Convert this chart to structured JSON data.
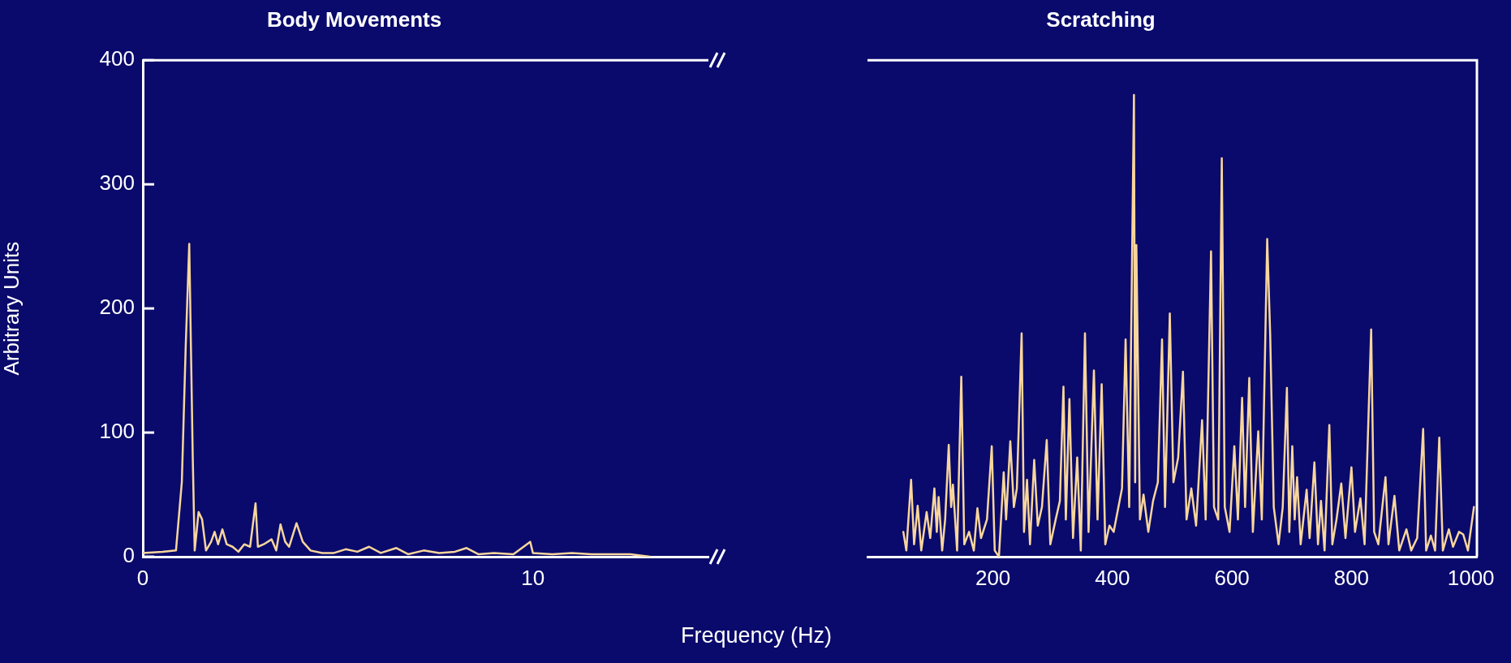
{
  "chart_data": [
    {
      "type": "line",
      "title": "Body Movements",
      "ylabel": "Arbitrary Units",
      "color": "#f8d69c",
      "x": [
        0,
        0.5,
        0.85,
        1.0,
        1.1,
        1.19,
        1.28,
        1.33,
        1.43,
        1.52,
        1.62,
        1.75,
        1.84,
        1.93,
        2.04,
        2.15,
        2.3,
        2.45,
        2.6,
        2.75,
        2.89,
        2.95,
        3.1,
        3.3,
        3.42,
        3.53,
        3.65,
        3.75,
        3.94,
        4.1,
        4.3,
        4.6,
        4.9,
        5.2,
        5.5,
        5.8,
        6.1,
        6.5,
        6.8,
        7.2,
        7.6,
        8.0,
        8.3,
        8.6,
        9.0,
        9.5,
        9.93,
        10.0,
        10.5,
        11.0,
        11.5,
        12.0,
        12.5,
        13.0
      ],
      "values": [
        3,
        4,
        5,
        60,
        170,
        252,
        80,
        5,
        36,
        30,
        5,
        12,
        20,
        10,
        22,
        10,
        8,
        4,
        10,
        8,
        43,
        8,
        10,
        14,
        5,
        26,
        12,
        8,
        27,
        12,
        5,
        3,
        3,
        6,
        4,
        8,
        3,
        7,
        2,
        5,
        3,
        4,
        7,
        2,
        3,
        2,
        12,
        3,
        2,
        3,
        2,
        2,
        2,
        0
      ],
      "xlim": [
        0,
        14.5
      ],
      "xticks": [
        0,
        10
      ],
      "ylim": [
        0,
        400
      ],
      "yticks": [
        0,
        100,
        200,
        300,
        400
      ]
    },
    {
      "type": "line",
      "title": "Scratching",
      "xlabel": "Frequency (Hz)",
      "color": "#f8d69c",
      "x": [
        50,
        55,
        63,
        68,
        74,
        80,
        89,
        95,
        102,
        106,
        109,
        115,
        120,
        126,
        130,
        133,
        140,
        147,
        152,
        160,
        168,
        174,
        180,
        190,
        198,
        203,
        210,
        218,
        222,
        229,
        235,
        240,
        248,
        252,
        257,
        262,
        269,
        275,
        282,
        290,
        296,
        305,
        312,
        318,
        322,
        328,
        334,
        341,
        347,
        354,
        360,
        369,
        375,
        382,
        388,
        395,
        402,
        410,
        416,
        422,
        428,
        436,
        438,
        440,
        446,
        452,
        460,
        468,
        476,
        483,
        488,
        496,
        502,
        510,
        518,
        524,
        532,
        540,
        550,
        556,
        565,
        570,
        577,
        583,
        588,
        596,
        604,
        610,
        617,
        622,
        629,
        635,
        644,
        650,
        659,
        664,
        670,
        678,
        685,
        692,
        696,
        701,
        705,
        709,
        715,
        725,
        730,
        738,
        744,
        749,
        755,
        763,
        768,
        775,
        783,
        790,
        800,
        806,
        815,
        822,
        833,
        838,
        845,
        857,
        862,
        872,
        880,
        892,
        900,
        910,
        920,
        925,
        933,
        940,
        947,
        953,
        963,
        970,
        980,
        987,
        995,
        1005
      ],
      "values": [
        20,
        5,
        62,
        10,
        41,
        5,
        36,
        15,
        55,
        20,
        48,
        5,
        30,
        90,
        40,
        58,
        5,
        145,
        10,
        20,
        5,
        39,
        15,
        30,
        89,
        5,
        0,
        68,
        30,
        93,
        40,
        55,
        180,
        20,
        62,
        10,
        78,
        25,
        40,
        94,
        10,
        30,
        45,
        137,
        30,
        127,
        15,
        80,
        5,
        180,
        20,
        150,
        30,
        139,
        10,
        25,
        20,
        40,
        55,
        175,
        40,
        372,
        60,
        251,
        30,
        50,
        20,
        45,
        60,
        175,
        40,
        196,
        60,
        80,
        149,
        30,
        55,
        25,
        110,
        30,
        246,
        40,
        30,
        321,
        40,
        20,
        89,
        30,
        128,
        40,
        144,
        20,
        101,
        30,
        256,
        179,
        40,
        10,
        40,
        136,
        20,
        89,
        30,
        64,
        10,
        54,
        15,
        76,
        10,
        45,
        5,
        106,
        10,
        30,
        59,
        15,
        72,
        20,
        47,
        10,
        183,
        20,
        10,
        64,
        10,
        49,
        5,
        22,
        5,
        15,
        103,
        5,
        17,
        5,
        96,
        5,
        22,
        8,
        20,
        18,
        5,
        40
      ],
      "xlim": [
        -10,
        1010
      ],
      "xticks": [
        200,
        400,
        600,
        800,
        1000
      ],
      "ylim": [
        0,
        400
      ],
      "yticks": [
        0,
        100,
        200,
        300,
        400
      ],
      "tick_labels": "x"
    }
  ]
}
